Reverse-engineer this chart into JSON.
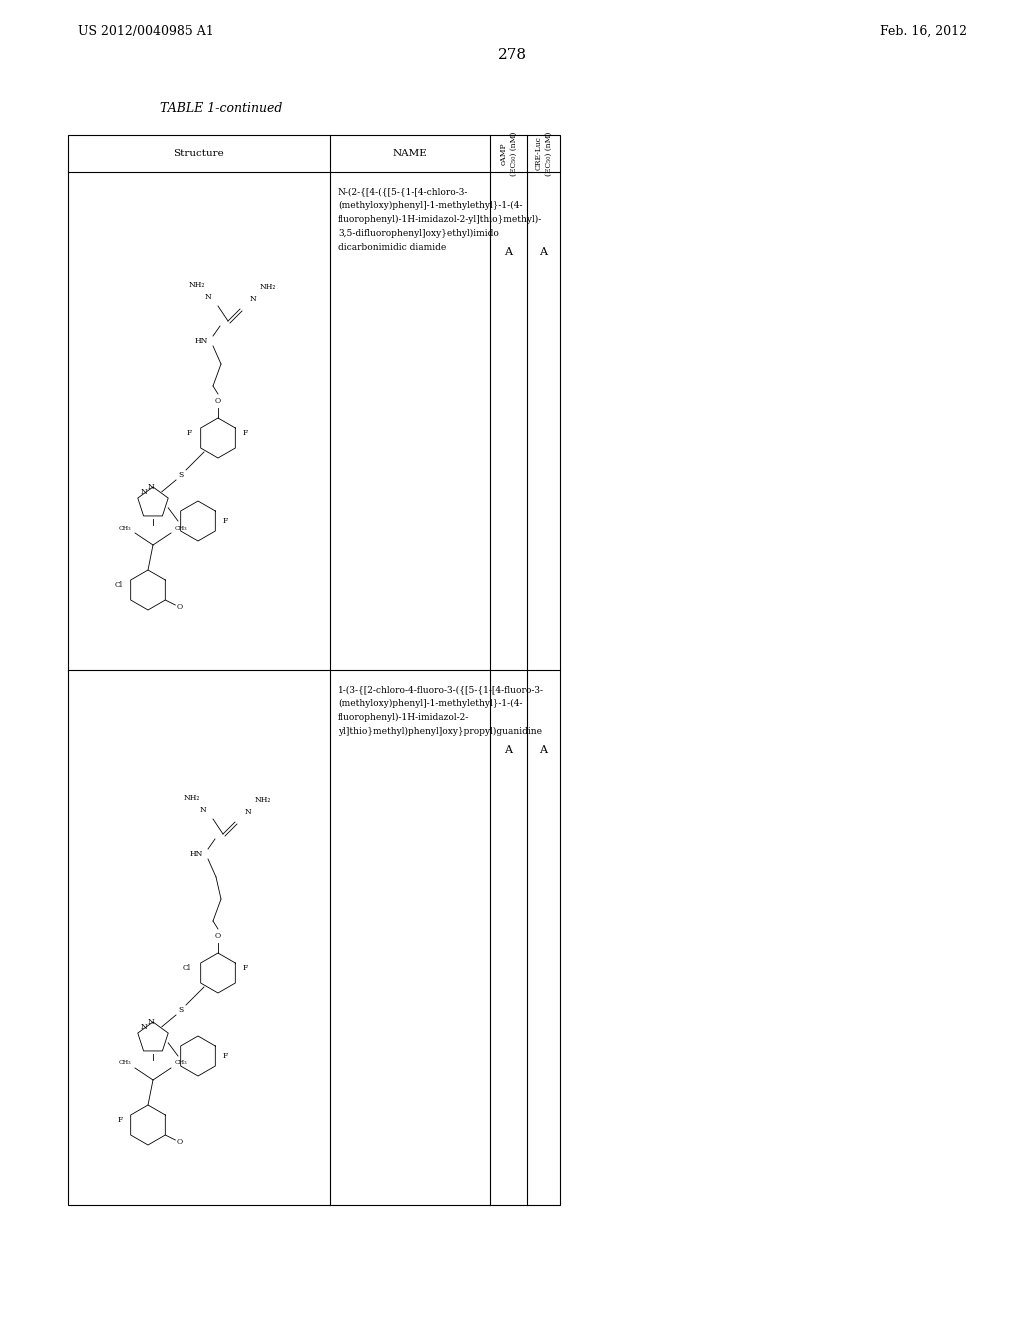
{
  "page_number": "278",
  "patent_number": "US 2012/0040985 A1",
  "patent_date": "Feb. 16, 2012",
  "table_title": "TABLE 1-continued",
  "bg_color": "#ffffff",
  "row1_name": [
    "N-(2-{[4-({[5-{1-[4-chloro-3-",
    "(methyloxy)phenyl]-1-methylethyl}-1-(4-",
    "fluorophenyl)-1H-imidazol-2-yl]thio}methyl)-",
    "3,5-difluorophenyl]oxy}ethyl)imido",
    "dicarbonimidic diamide"
  ],
  "row2_name": [
    "1-(3-{[2-chloro-4-fluoro-3-({[5-{1-[4-fluoro-3-",
    "(methyloxy)phenyl]-1-methylethyl}-1-(4-",
    "fluorophenyl)-1H-imidazol-2-",
    "yl]thio}methyl)phenyl]oxy}propyl)guanidine"
  ],
  "row1_camp": "A",
  "row1_cre": "A",
  "row2_camp": "A",
  "row2_cre": "A"
}
